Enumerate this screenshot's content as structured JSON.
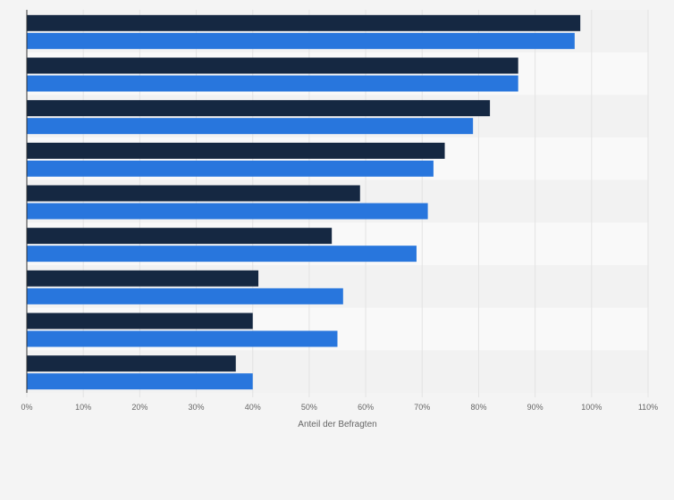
{
  "chart_data": {
    "type": "bar",
    "orientation": "horizontal",
    "categories": [
      "",
      "",
      "",
      "",
      "",
      "",
      "",
      "",
      ""
    ],
    "series": [
      {
        "values": [
          98,
          87,
          82,
          74,
          59,
          54,
          41,
          40,
          37
        ]
      },
      {
        "values": [
          97,
          87,
          79,
          72,
          71,
          69,
          56,
          55,
          40
        ]
      }
    ],
    "xlabel": "Anteil der Befragten",
    "ylabel": "",
    "xlim": [
      0,
      110
    ],
    "x_ticks": [
      "0%",
      "10%",
      "20%",
      "30%",
      "40%",
      "50%",
      "60%",
      "70%",
      "80%",
      "90%",
      "100%",
      "110%"
    ],
    "grid": true,
    "legend": "none"
  },
  "colors": {
    "series_1": "#152842",
    "series_2": "#2876dd",
    "band_a": "#f2f2f2",
    "band_b": "#f9f9f9",
    "gridline": "#e3e3e3",
    "axis_line": "#333333",
    "background": "#f4f4f4"
  }
}
